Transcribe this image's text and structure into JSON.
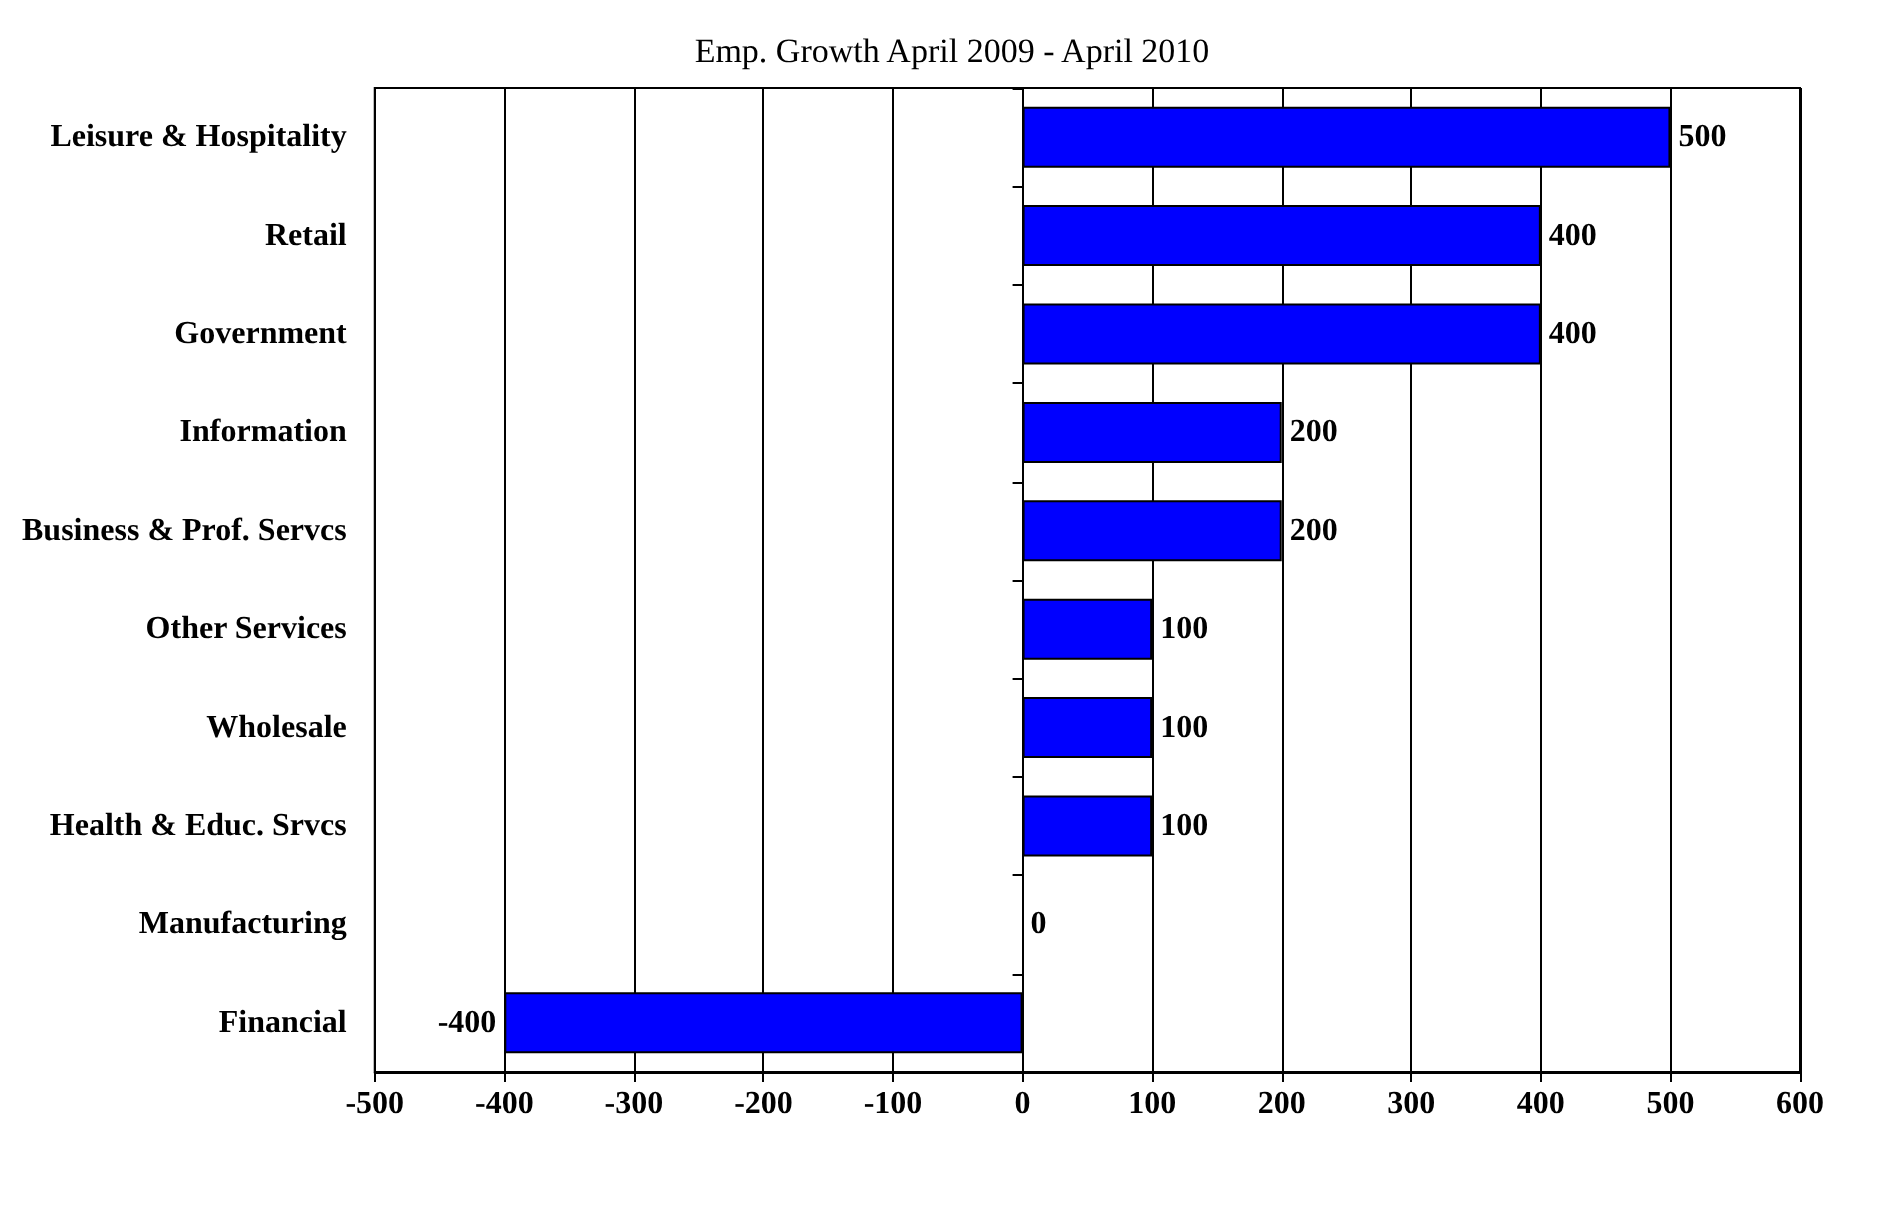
{
  "chart_data": {
    "type": "bar",
    "orientation": "horizontal",
    "title": "Emp. Growth April 2009 - April 2010",
    "categories": [
      "Leisure & Hospitality",
      "Retail",
      "Government",
      "Information",
      "Business & Prof. Servcs",
      "Other Services",
      "Wholesale",
      "Health & Educ. Srvcs",
      "Manufacturing",
      "Financial"
    ],
    "values": [
      500,
      400,
      400,
      200,
      200,
      100,
      100,
      100,
      0,
      -400
    ],
    "color": "#0000ff",
    "xlim": [
      -500,
      600
    ],
    "xticks": [
      -500,
      -400,
      -300,
      -200,
      -100,
      0,
      100,
      200,
      300,
      400,
      500,
      600
    ],
    "grid": "x",
    "data_labels": true
  }
}
